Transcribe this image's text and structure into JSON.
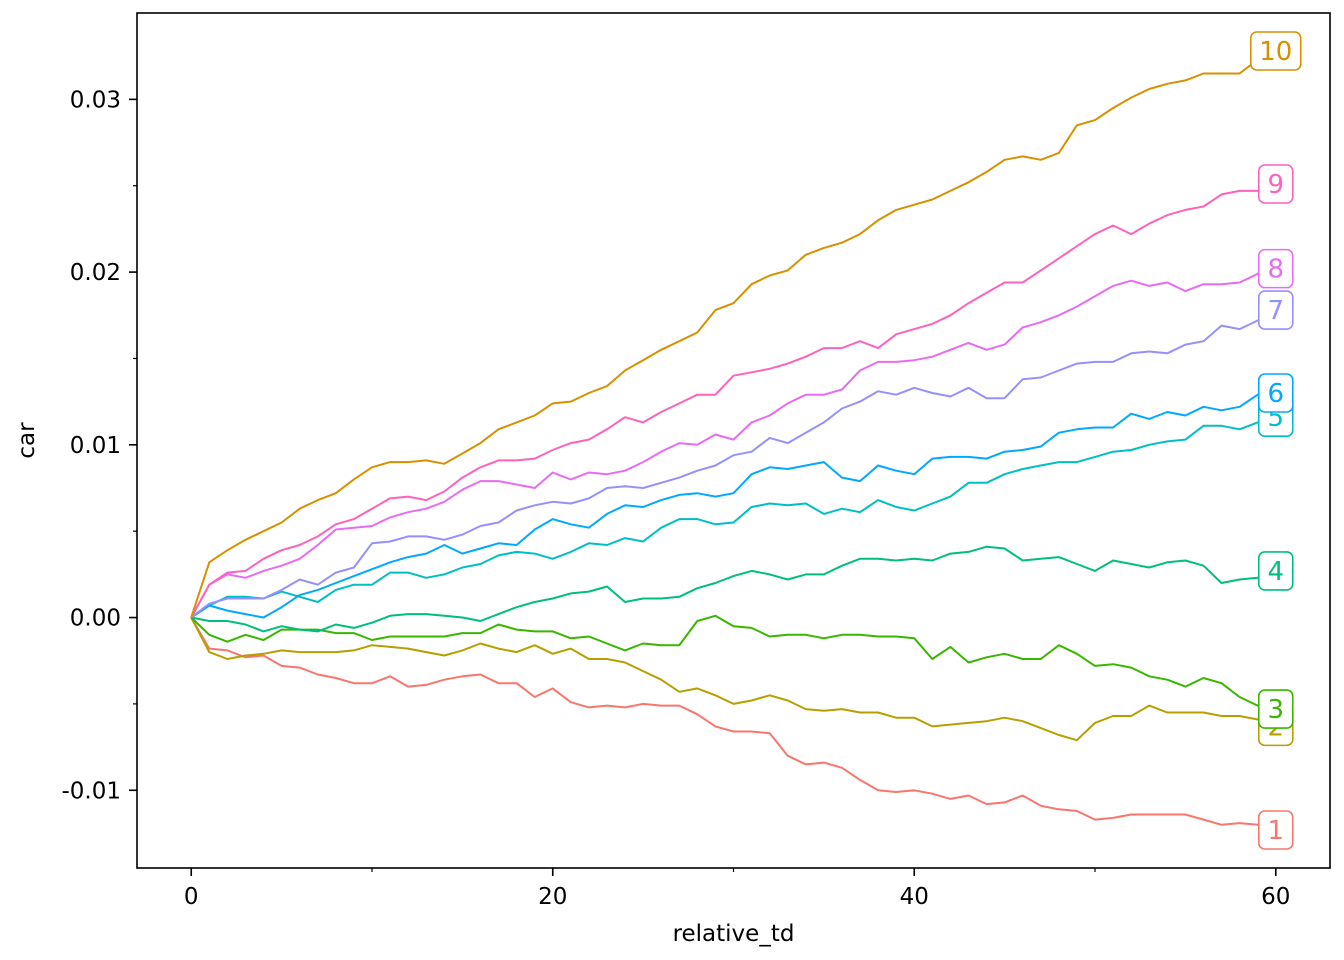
{
  "chart_data": {
    "type": "line",
    "title": "",
    "xlabel": "relative_td",
    "ylabel": "car",
    "xlim": [
      -3,
      63
    ],
    "ylim": [
      -0.0145,
      0.035
    ],
    "x_major_ticks": [
      0,
      20,
      40,
      60
    ],
    "x_minor_ticks": [
      10,
      30,
      50
    ],
    "y_major_ticks": [
      -0.01,
      0.0,
      0.01,
      0.02,
      0.03
    ],
    "y_minor_ticks": [
      -0.005,
      0.005,
      0.015,
      0.025
    ],
    "x_tick_labels": [
      "0",
      "20",
      "40",
      "60"
    ],
    "y_tick_labels": [
      "-0.01",
      "0.00",
      "0.01",
      "0.02",
      "0.03"
    ],
    "grid": false,
    "legend": "none (series labelled at line ends)",
    "series": [
      {
        "label": "1",
        "color": "#F8766D",
        "values": [
          0,
          -0.0018,
          -0.0019,
          -0.0023,
          -0.0022,
          -0.0028,
          -0.0029,
          -0.0033,
          -0.0035,
          -0.0038,
          -0.0038,
          -0.0034,
          -0.004,
          -0.0039,
          -0.0036,
          -0.0034,
          -0.0033,
          -0.0038,
          -0.0038,
          -0.0046,
          -0.0041,
          -0.0049,
          -0.0052,
          -0.0051,
          -0.0052,
          -0.005,
          -0.0051,
          -0.0051,
          -0.0056,
          -0.0063,
          -0.0066,
          -0.0066,
          -0.0067,
          -0.008,
          -0.0085,
          -0.0084,
          -0.0087,
          -0.0094,
          -0.01,
          -0.0101,
          -0.01,
          -0.0102,
          -0.0105,
          -0.0103,
          -0.0108,
          -0.0107,
          -0.0103,
          -0.0109,
          -0.0111,
          -0.0112,
          -0.0117,
          -0.0116,
          -0.0114,
          -0.0114,
          -0.0114,
          -0.0114,
          -0.0117,
          -0.012,
          -0.0119,
          -0.012,
          -0.0123
        ]
      },
      {
        "label": "2",
        "color": "#B79F00",
        "values": [
          0,
          -0.002,
          -0.0024,
          -0.0022,
          -0.0021,
          -0.0019,
          -0.002,
          -0.002,
          -0.002,
          -0.0019,
          -0.0016,
          -0.0017,
          -0.0018,
          -0.002,
          -0.0022,
          -0.0019,
          -0.0015,
          -0.0018,
          -0.002,
          -0.0016,
          -0.0021,
          -0.0018,
          -0.0024,
          -0.0024,
          -0.0026,
          -0.0031,
          -0.0036,
          -0.0043,
          -0.0041,
          -0.0045,
          -0.005,
          -0.0048,
          -0.0045,
          -0.0048,
          -0.0053,
          -0.0054,
          -0.0053,
          -0.0055,
          -0.0055,
          -0.0058,
          -0.0058,
          -0.0063,
          -0.0062,
          -0.0061,
          -0.006,
          -0.0058,
          -0.006,
          -0.0064,
          -0.0068,
          -0.0071,
          -0.0061,
          -0.0057,
          -0.0057,
          -0.0051,
          -0.0055,
          -0.0055,
          -0.0055,
          -0.0057,
          -0.0057,
          -0.0059,
          -0.0063
        ]
      },
      {
        "label": "3",
        "color": "#39B600",
        "values": [
          0,
          -0.001,
          -0.0014,
          -0.001,
          -0.0013,
          -0.0007,
          -0.0007,
          -0.0007,
          -0.0009,
          -0.0009,
          -0.0013,
          -0.0011,
          -0.0011,
          -0.0011,
          -0.0011,
          -0.0009,
          -0.0009,
          -0.0004,
          -0.0007,
          -0.0008,
          -0.0008,
          -0.0012,
          -0.0011,
          -0.0015,
          -0.0019,
          -0.0015,
          -0.0016,
          -0.0016,
          -0.0002,
          0.0001,
          -0.0005,
          -0.0006,
          -0.0011,
          -0.001,
          -0.001,
          -0.0012,
          -0.001,
          -0.001,
          -0.0011,
          -0.0011,
          -0.0012,
          -0.0024,
          -0.0017,
          -0.0026,
          -0.0023,
          -0.0021,
          -0.0024,
          -0.0024,
          -0.0016,
          -0.0021,
          -0.0028,
          -0.0027,
          -0.0029,
          -0.0034,
          -0.0036,
          -0.004,
          -0.0035,
          -0.0038,
          -0.0046,
          -0.0051,
          -0.0053
        ]
      },
      {
        "label": "4",
        "color": "#00BF7D",
        "values": [
          0,
          -0.0002,
          -0.0002,
          -0.0004,
          -0.0008,
          -0.0005,
          -0.0007,
          -0.0008,
          -0.0004,
          -0.0006,
          -0.0003,
          0.0001,
          0.0002,
          0.0002,
          0.0001,
          0.0,
          -0.0002,
          0.0002,
          0.0006,
          0.0009,
          0.0011,
          0.0014,
          0.0015,
          0.0018,
          0.0009,
          0.0011,
          0.0011,
          0.0012,
          0.0017,
          0.002,
          0.0024,
          0.0027,
          0.0025,
          0.0022,
          0.0025,
          0.0025,
          0.003,
          0.0034,
          0.0034,
          0.0033,
          0.0034,
          0.0033,
          0.0037,
          0.0038,
          0.0041,
          0.004,
          0.0033,
          0.0034,
          0.0035,
          0.0031,
          0.0027,
          0.0033,
          0.0031,
          0.0029,
          0.0032,
          0.0033,
          0.003,
          0.002,
          0.0022,
          0.0023,
          0.0027
        ]
      },
      {
        "label": "5",
        "color": "#00BFC4",
        "values": [
          0,
          0.0007,
          0.0012,
          0.0012,
          0.0011,
          0.0015,
          0.0012,
          0.0009,
          0.0016,
          0.0019,
          0.0019,
          0.0026,
          0.0026,
          0.0023,
          0.0025,
          0.0029,
          0.0031,
          0.0036,
          0.0038,
          0.0037,
          0.0034,
          0.0038,
          0.0043,
          0.0042,
          0.0046,
          0.0044,
          0.0052,
          0.0057,
          0.0057,
          0.0054,
          0.0055,
          0.0064,
          0.0066,
          0.0065,
          0.0066,
          0.006,
          0.0063,
          0.0061,
          0.0068,
          0.0064,
          0.0062,
          0.0066,
          0.007,
          0.0078,
          0.0078,
          0.0083,
          0.0086,
          0.0088,
          0.009,
          0.009,
          0.0093,
          0.0096,
          0.0097,
          0.01,
          0.0102,
          0.0103,
          0.0111,
          0.0111,
          0.0109,
          0.0113,
          0.0116
        ]
      },
      {
        "label": "6",
        "color": "#00A9FF",
        "values": [
          0,
          0.0007,
          0.0004,
          0.0002,
          0.0,
          0.0006,
          0.0013,
          0.0016,
          0.002,
          0.0024,
          0.0028,
          0.0032,
          0.0035,
          0.0037,
          0.0042,
          0.0037,
          0.004,
          0.0043,
          0.0042,
          0.0051,
          0.0057,
          0.0054,
          0.0052,
          0.006,
          0.0065,
          0.0064,
          0.0068,
          0.0071,
          0.0072,
          0.007,
          0.0072,
          0.0083,
          0.0087,
          0.0086,
          0.0088,
          0.009,
          0.0081,
          0.0079,
          0.0088,
          0.0085,
          0.0083,
          0.0092,
          0.0093,
          0.0093,
          0.0092,
          0.0096,
          0.0097,
          0.0099,
          0.0107,
          0.0109,
          0.011,
          0.011,
          0.0118,
          0.0115,
          0.0119,
          0.0117,
          0.0122,
          0.012,
          0.0122,
          0.0129,
          0.013
        ]
      },
      {
        "label": "7",
        "color": "#9590FF",
        "values": [
          0,
          0.0008,
          0.0011,
          0.0011,
          0.0011,
          0.0016,
          0.0022,
          0.0019,
          0.0026,
          0.0029,
          0.0043,
          0.0044,
          0.0047,
          0.0047,
          0.0045,
          0.0048,
          0.0053,
          0.0055,
          0.0062,
          0.0065,
          0.0067,
          0.0066,
          0.0069,
          0.0075,
          0.0076,
          0.0075,
          0.0078,
          0.0081,
          0.0085,
          0.0088,
          0.0094,
          0.0096,
          0.0104,
          0.0101,
          0.0107,
          0.0113,
          0.0121,
          0.0125,
          0.0131,
          0.0129,
          0.0133,
          0.013,
          0.0128,
          0.0133,
          0.0127,
          0.0127,
          0.0138,
          0.0139,
          0.0143,
          0.0147,
          0.0148,
          0.0148,
          0.0153,
          0.0154,
          0.0153,
          0.0158,
          0.016,
          0.0169,
          0.0167,
          0.0172,
          0.0178
        ]
      },
      {
        "label": "8",
        "color": "#E76BF3",
        "values": [
          0,
          0.0019,
          0.0025,
          0.0023,
          0.0027,
          0.003,
          0.0034,
          0.0042,
          0.0051,
          0.0052,
          0.0053,
          0.0058,
          0.0061,
          0.0063,
          0.0067,
          0.0074,
          0.0079,
          0.0079,
          0.0077,
          0.0075,
          0.0084,
          0.008,
          0.0084,
          0.0083,
          0.0085,
          0.009,
          0.0096,
          0.0101,
          0.01,
          0.0106,
          0.0103,
          0.0113,
          0.0117,
          0.0124,
          0.0129,
          0.0129,
          0.0132,
          0.0143,
          0.0148,
          0.0148,
          0.0149,
          0.0151,
          0.0155,
          0.0159,
          0.0155,
          0.0158,
          0.0168,
          0.0171,
          0.0175,
          0.018,
          0.0186,
          0.0192,
          0.0195,
          0.0192,
          0.0194,
          0.0189,
          0.0193,
          0.0193,
          0.0194,
          0.0199,
          0.0202
        ]
      },
      {
        "label": "9",
        "color": "#FF62BC",
        "values": [
          0,
          0.0019,
          0.0026,
          0.0027,
          0.0034,
          0.0039,
          0.0042,
          0.0047,
          0.0054,
          0.0057,
          0.0063,
          0.0069,
          0.007,
          0.0068,
          0.0073,
          0.0081,
          0.0087,
          0.0091,
          0.0091,
          0.0092,
          0.0097,
          0.0101,
          0.0103,
          0.0109,
          0.0116,
          0.0113,
          0.0119,
          0.0124,
          0.0129,
          0.0129,
          0.014,
          0.0142,
          0.0144,
          0.0147,
          0.0151,
          0.0156,
          0.0156,
          0.016,
          0.0156,
          0.0164,
          0.0167,
          0.017,
          0.0175,
          0.0182,
          0.0188,
          0.0194,
          0.0194,
          0.0201,
          0.0208,
          0.0215,
          0.0222,
          0.0227,
          0.0222,
          0.0228,
          0.0233,
          0.0236,
          0.0238,
          0.0245,
          0.0247,
          0.0247,
          0.0251
        ]
      },
      {
        "label": "10",
        "color": "#D89000",
        "values": [
          0,
          0.0032,
          0.0039,
          0.0045,
          0.005,
          0.0055,
          0.0063,
          0.0068,
          0.0072,
          0.008,
          0.0087,
          0.009,
          0.009,
          0.0091,
          0.0089,
          0.0095,
          0.0101,
          0.0109,
          0.0113,
          0.0117,
          0.0124,
          0.0125,
          0.013,
          0.0134,
          0.0143,
          0.0149,
          0.0155,
          0.016,
          0.0165,
          0.0178,
          0.0182,
          0.0193,
          0.0198,
          0.0201,
          0.021,
          0.0214,
          0.0217,
          0.0222,
          0.023,
          0.0236,
          0.0239,
          0.0242,
          0.0247,
          0.0252,
          0.0258,
          0.0265,
          0.0267,
          0.0265,
          0.0269,
          0.0285,
          0.0288,
          0.0295,
          0.0301,
          0.0306,
          0.0309,
          0.0311,
          0.0315,
          0.0315,
          0.0315,
          0.0323,
          0.0328
        ]
      }
    ]
  }
}
